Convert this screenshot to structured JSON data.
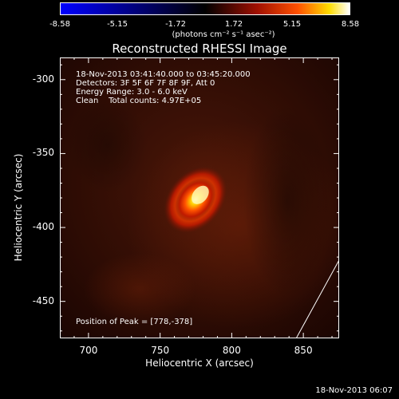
{
  "chart_data": {
    "type": "heatmap",
    "title": "Reconstructed RHESSI Image",
    "xlabel": "Heliocentric X (arcsec)",
    "ylabel": "Heliocentric Y (arcsec)",
    "xlim": [
      680,
      875
    ],
    "ylim": [
      -475,
      -285
    ],
    "x_ticks": [
      700,
      750,
      800,
      850
    ],
    "y_ticks": [
      -300,
      -350,
      -400,
      -450
    ],
    "colorbar": {
      "range": [
        -8.58,
        8.58
      ],
      "ticks": [
        "-8.58",
        "-5.15",
        "-1.72",
        "1.72",
        "5.15",
        "8.58"
      ],
      "units": "(photons cm⁻² s⁻¹ asec⁻²)",
      "colormap": [
        "#0000ff",
        "#000000",
        "#ff0000",
        "#ffff00",
        "#ffffff"
      ]
    },
    "info_lines": [
      "18-Nov-2013 03:41:40.000 to 03:45:20.000",
      "Detectors: 3F 5F 6F 7F 8F 9F, Att 0",
      "Energy Range: 3.0 - 6.0 keV",
      "Clean    Total counts: 4.97E+05"
    ],
    "peak_label": "Position of Peak = [778,-378]",
    "peak": {
      "x": 778,
      "y": -378,
      "value": 8.58
    },
    "limb_line": [
      [
        845,
        -475
      ],
      [
        875,
        -422
      ]
    ]
  },
  "timestamp": "18-Nov-2013 06:07"
}
